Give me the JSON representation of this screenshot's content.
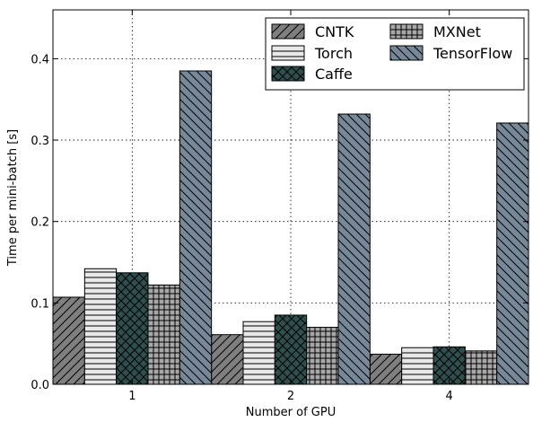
{
  "chart_data": {
    "type": "bar",
    "title": "",
    "xlabel": "Number of GPU",
    "ylabel": "Time per mini-batch [s]",
    "categories": [
      "1",
      "2",
      "4"
    ],
    "ylim": [
      0,
      0.46
    ],
    "yticks": [
      "0.0",
      "0.1",
      "0.2",
      "0.3",
      "0.4"
    ],
    "grid": true,
    "legend_position": "top-right",
    "series": [
      {
        "name": "CNTK",
        "values": [
          0.107,
          0.061,
          0.037
        ],
        "color": "#7f7f7f",
        "hatch": "diagonal-forward"
      },
      {
        "name": "Torch",
        "values": [
          0.142,
          0.077,
          0.045
        ],
        "color": "#e8e8e8",
        "hatch": "horizontal"
      },
      {
        "name": "Caffe",
        "values": [
          0.137,
          0.085,
          0.046
        ],
        "color": "#2f4f4f",
        "hatch": "cross-diagonal"
      },
      {
        "name": "MXNet",
        "values": [
          0.122,
          0.07,
          0.041
        ],
        "color": "#a8a8a8",
        "hatch": "grid"
      },
      {
        "name": "TensorFlow",
        "values": [
          0.385,
          0.332,
          0.321
        ],
        "color": "#778899",
        "hatch": "diagonal-back"
      }
    ]
  }
}
